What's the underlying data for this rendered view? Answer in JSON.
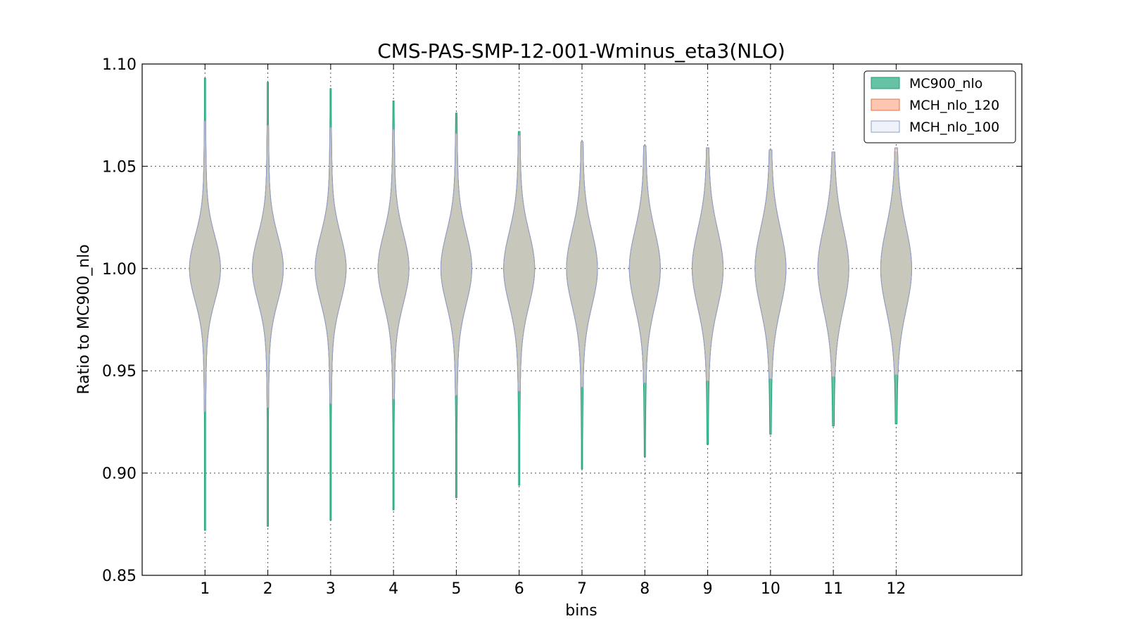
{
  "chart_data": {
    "type": "violin",
    "title": "CMS-PAS-SMP-12-001-Wminus_eta3(NLO)",
    "xlabel": "bins",
    "ylabel": "Ratio to MC900_nlo",
    "categories": [
      "1",
      "2",
      "3",
      "4",
      "5",
      "6",
      "7",
      "8",
      "9",
      "10",
      "11",
      "12"
    ],
    "ylim": [
      0.85,
      1.1
    ],
    "yticks": [
      "0.85",
      "0.90",
      "0.95",
      "1.00",
      "1.05",
      "1.10"
    ],
    "grid": true,
    "legend_position": "top-right",
    "series": [
      {
        "name": "MC900_nlo",
        "color": "#66c2a5",
        "edge": "#1b9e77",
        "center": [
          1.0,
          1.0,
          1.0,
          1.0,
          1.0,
          1.0,
          1.0,
          1.0,
          1.0,
          1.0,
          1.0,
          1.0
        ],
        "min": [
          0.872,
          0.874,
          0.877,
          0.882,
          0.888,
          0.894,
          0.902,
          0.908,
          0.914,
          0.919,
          0.923,
          0.924
        ],
        "max": [
          1.093,
          1.091,
          1.088,
          1.082,
          1.076,
          1.067,
          1.062,
          1.06,
          1.059,
          1.058,
          1.057,
          1.057
        ]
      },
      {
        "name": "MCH_nlo_120",
        "color": "#fc8d62",
        "edge": "#e0744f",
        "center": [
          1.0,
          1.0,
          1.0,
          1.0,
          1.0,
          1.0,
          1.0,
          1.0,
          1.0,
          1.0,
          1.0,
          1.0
        ],
        "min": [
          0.93,
          0.932,
          0.934,
          0.936,
          0.938,
          0.94,
          0.942,
          0.944,
          0.945,
          0.946,
          0.947,
          0.948
        ],
        "max": [
          1.072,
          1.07,
          1.069,
          1.068,
          1.066,
          1.065,
          1.062,
          1.06,
          1.059,
          1.058,
          1.057,
          1.059
        ]
      },
      {
        "name": "MCH_nlo_100",
        "color": "#dfe5f3",
        "edge": "#8da0cb",
        "center": [
          1.0,
          1.0,
          1.0,
          1.0,
          1.0,
          1.0,
          1.0,
          1.0,
          1.0,
          1.0,
          1.0,
          1.0
        ],
        "min": [
          0.93,
          0.932,
          0.934,
          0.936,
          0.938,
          0.94,
          0.942,
          0.944,
          0.945,
          0.946,
          0.947,
          0.948
        ],
        "max": [
          1.072,
          1.07,
          1.069,
          1.068,
          1.066,
          1.065,
          1.062,
          1.06,
          1.059,
          1.058,
          1.057,
          1.059
        ]
      }
    ]
  }
}
